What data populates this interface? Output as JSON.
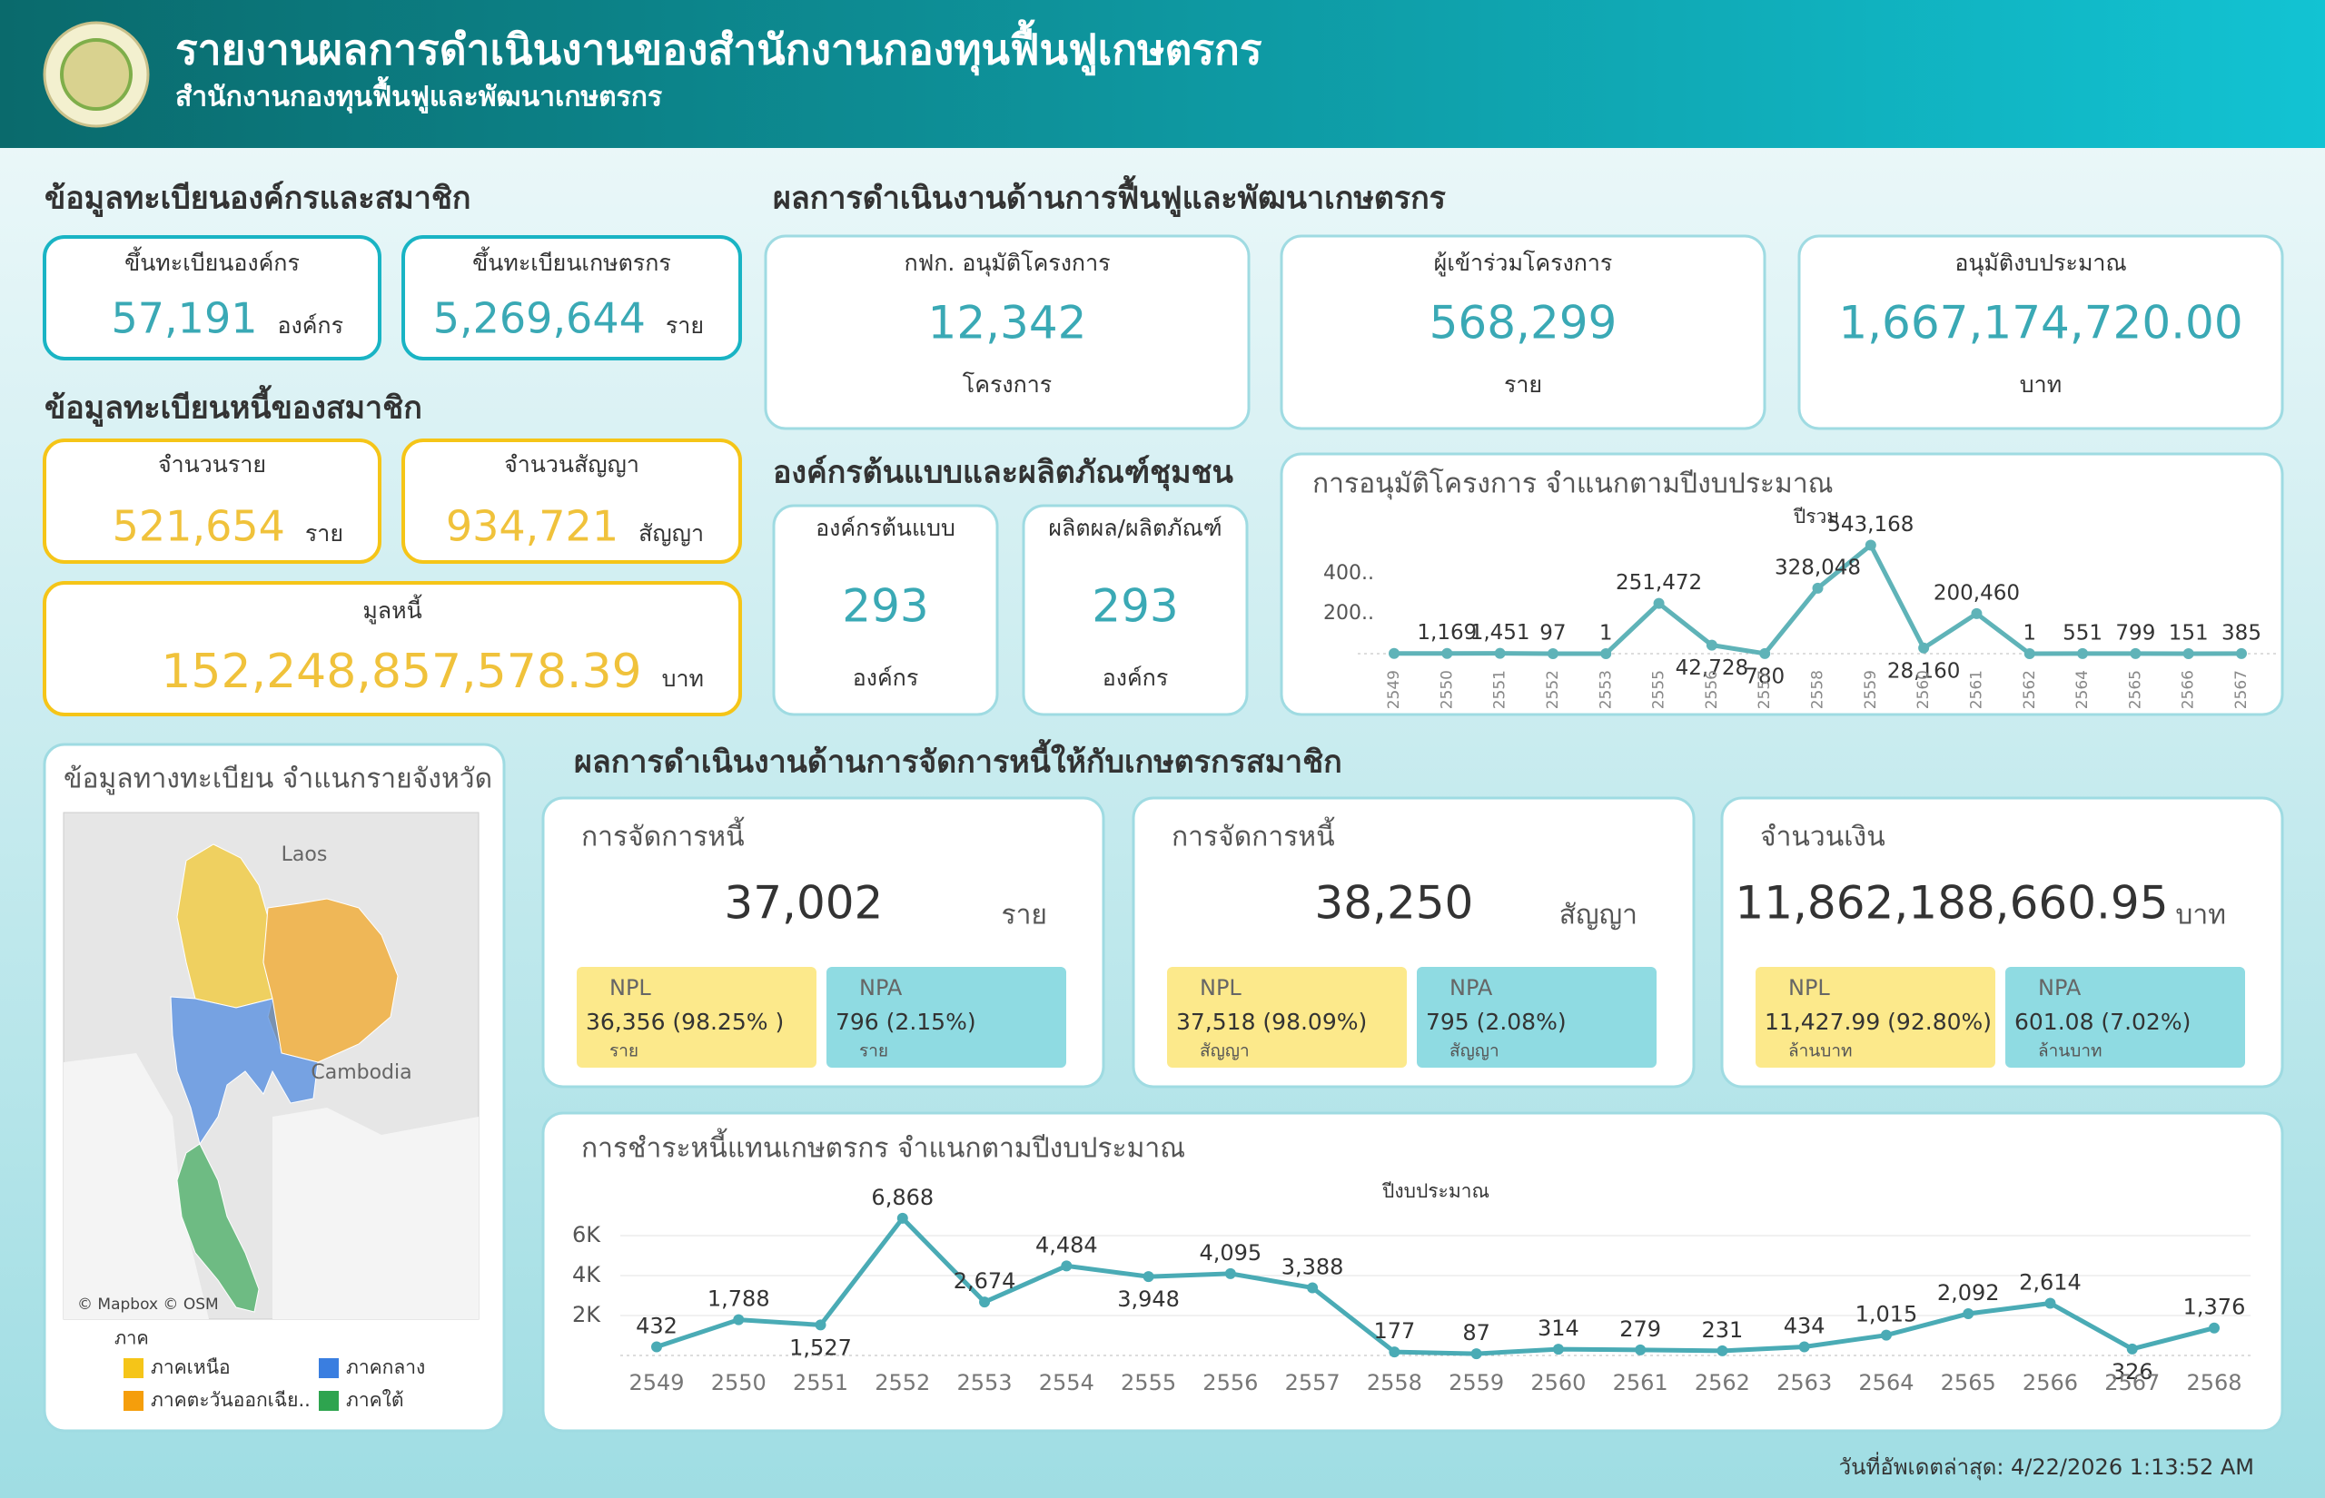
{
  "header": {
    "title": "รายงานผลการดำเนินงานของสำนักงานกองทุนฟื้นฟูเกษตรกร",
    "subtitle": "สำนักงานกองทุนฟื้นฟูและพัฒนาเกษตรกร"
  },
  "member_registration": {
    "title": "ข้อมูลทะเบียนองค์กรและสมาชิก",
    "cards": [
      {
        "label": "ขึ้นทะเบียนองค์กร",
        "value": "57,191",
        "unit": "องค์กร"
      },
      {
        "label": "ขึ้นทะเบียนเกษตรกร",
        "value": "5,269,644",
        "unit": "ราย"
      }
    ]
  },
  "debt_registration": {
    "title": "ข้อมูลทะเบียนหนี้ของสมาชิก",
    "cards": [
      {
        "label": "จำนวนราย",
        "value": "521,654",
        "unit": "ราย"
      },
      {
        "label": "จำนวนสัญญา",
        "value": "934,721",
        "unit": "สัญญา"
      },
      {
        "label": "มูลหนี้",
        "value": "152,248,857,578.39",
        "unit": "บาท"
      }
    ]
  },
  "rehab_performance": {
    "title": "ผลการดำเนินงานด้านการฟื้นฟูและพัฒนาเกษตรกร",
    "cards": [
      {
        "label": "กฟก. อนุมัติโครงการ",
        "value": "12,342",
        "unit": "โครงการ"
      },
      {
        "label": "ผู้เข้าร่วมโครงการ",
        "value": "568,299",
        "unit": "ราย"
      },
      {
        "label": "อนุมัติงบประมาณ",
        "value": "1,667,174,720.00",
        "unit": "บาท"
      }
    ]
  },
  "model_organizations": {
    "title": "องค์กรต้นแบบและผลิตภัณฑ์ชุมชน",
    "cards": [
      {
        "label": "องค์กรต้นแบบ",
        "value": "293",
        "unit": "องค์กร"
      },
      {
        "label": "ผลิตผล/ผลิตภัณฑ์",
        "value": "293",
        "unit": "องค์กร"
      }
    ]
  },
  "approval_chart": {
    "type": "line",
    "title": "การอนุมัติโครงการ จำแนกตามปีงบประมาณ",
    "x_title": "ปีรวม",
    "color": "#5fb3b8",
    "categories": [
      "2549",
      "2550",
      "2551",
      "2552",
      "2553",
      "2555",
      "2556",
      "2557",
      "2558",
      "2559",
      "2560",
      "2561",
      "2562",
      "2564",
      "2565",
      "2566",
      "2567"
    ],
    "values": [
      1000,
      1169,
      1451,
      97,
      1,
      251472,
      42728,
      780,
      328048,
      543168,
      28160,
      200460,
      1,
      551,
      799,
      151,
      385
    ],
    "value_labels": [
      null,
      "1,169",
      "1,451",
      "97",
      "1",
      "251,472",
      "42,728",
      "780",
      "328,048",
      "543,168",
      "28,160",
      "200,460",
      "1",
      "551",
      "799",
      "151",
      "385"
    ],
    "ylim": [
      0,
      600000
    ],
    "yticks": [
      {
        "value": 200000,
        "label": "200.."
      },
      {
        "value": 400000,
        "label": "400.."
      }
    ]
  },
  "province_map": {
    "title": "ข้อมูลทางทะเบียน จำแนกรายจังหวัด",
    "labels": [
      "Laos",
      "Cambodia"
    ],
    "attribution": "© Mapbox © OSM",
    "legend": {
      "title": "ภาค",
      "items": [
        {
          "name": "ภาคเหนือ",
          "color": "#f5c518"
        },
        {
          "name": "ภาคกลาง",
          "color": "#3a7ee0"
        },
        {
          "name": "ภาคตะวันออกเฉีย..",
          "color": "#f59e0b"
        },
        {
          "name": "ภาคใต้",
          "color": "#2ea44f"
        }
      ]
    }
  },
  "debt_management": {
    "title": "ผลการดำเนินงานด้านการจัดการหนี้ให้กับเกษตรกรสมาชิก",
    "cards": [
      {
        "label": "การจัดการหนี้",
        "value": "37,002",
        "unit": "ราย",
        "npl": {
          "label": "NPL",
          "value": "36,356 (98.25% )",
          "unit": "ราย"
        },
        "npa": {
          "label": "NPA",
          "value": "796 (2.15%)",
          "unit": "ราย"
        }
      },
      {
        "label": "การจัดการหนี้",
        "value": "38,250",
        "unit": "สัญญา",
        "npl": {
          "label": "NPL",
          "value": "37,518 (98.09%)",
          "unit": "สัญญา"
        },
        "npa": {
          "label": "NPA",
          "value": "795 (2.08%)",
          "unit": "สัญญา"
        }
      },
      {
        "label": "จำนวนเงิน",
        "value": "11,862,188,660.95",
        "unit": "บาท",
        "npl": {
          "label": "NPL",
          "value": "11,427.99 (92.80%)",
          "unit": "ล้านบาท"
        },
        "npa": {
          "label": "NPA",
          "value": "601.08 (7.02%)",
          "unit": "ล้านบาท"
        }
      }
    ]
  },
  "payment_chart": {
    "type": "line",
    "title": "การชำระหนี้แทนเกษตรกร จำแนกตามปีงบประมาณ",
    "x_title": "ปีงบประมาณ",
    "color": "#4aabb5",
    "grid": true,
    "categories": [
      "2549",
      "2550",
      "2551",
      "2552",
      "2553",
      "2554",
      "2555",
      "2556",
      "2557",
      "2558",
      "2559",
      "2560",
      "2561",
      "2562",
      "2563",
      "2564",
      "2565",
      "2566",
      "2567",
      "2568"
    ],
    "values": [
      432,
      1788,
      1527,
      6868,
      2674,
      4484,
      3948,
      4095,
      3388,
      177,
      87,
      314,
      279,
      231,
      434,
      1015,
      2092,
      2614,
      326,
      1376
    ],
    "value_labels": [
      "432",
      "1,788",
      "1,527",
      "6,868",
      "2,674",
      "4,484",
      "3,948",
      "4,095",
      "3,388",
      "177",
      "87",
      "314",
      "279",
      "231",
      "434",
      "1,015",
      "2,092",
      "2,614",
      "326",
      "1,376"
    ],
    "ylim": [
      0,
      7500
    ],
    "yticks": [
      {
        "value": 2000,
        "label": "2K"
      },
      {
        "value": 4000,
        "label": "4K"
      },
      {
        "value": 6000,
        "label": "6K"
      }
    ]
  },
  "footer": {
    "updated": "วันที่อัพเดตล่าสุด: 4/22/2026 1:13:52 AM"
  }
}
